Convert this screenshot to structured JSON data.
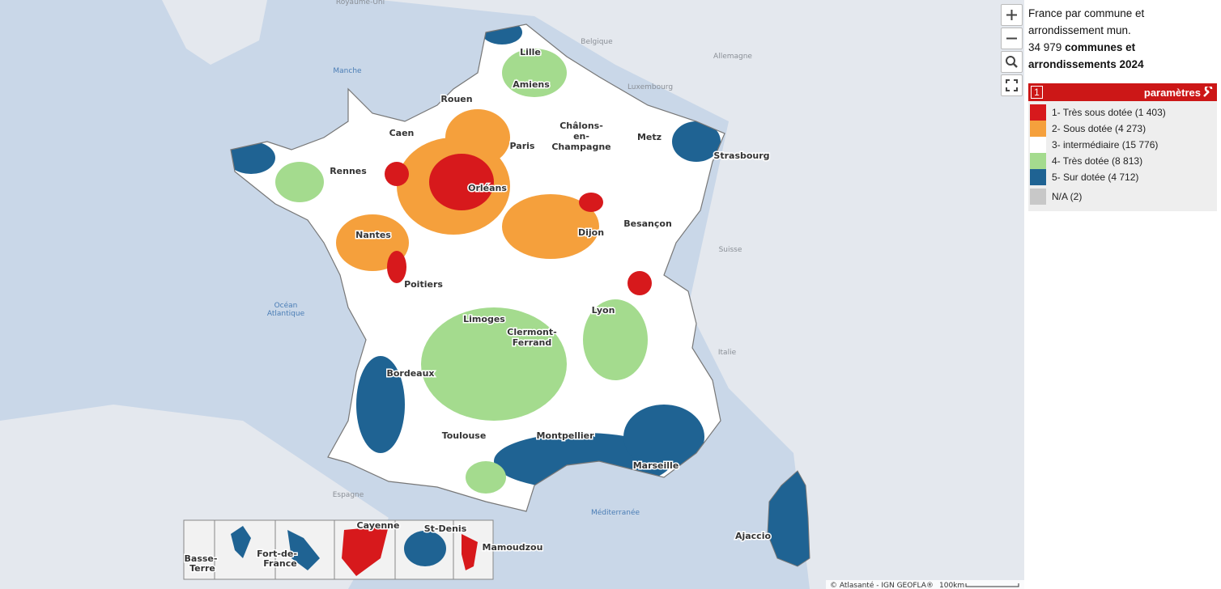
{
  "map": {
    "cities": [
      "Lille",
      "Amiens",
      "Rouen",
      "Caen",
      "Paris",
      [
        "Châlons-",
        "en-",
        "Champagne"
      ],
      "Metz",
      "Strasbourg",
      "Rennes",
      "Orléans",
      "Nantes",
      "Dijon",
      "Besançon",
      "Poitiers",
      "Limoges",
      "Lyon",
      [
        "Clermont-",
        "Ferrand"
      ],
      "Bordeaux",
      "Toulouse",
      "Montpellier",
      "Marseille",
      "Ajaccio",
      "Cayenne",
      "St-Denis",
      "Mamoudzou",
      [
        "Fort-de-",
        "France"
      ],
      [
        "Basse-",
        "Terre"
      ]
    ],
    "countries": [
      "Royaume-Uni",
      "Belgique",
      "Allemagne",
      "Luxembourg",
      "Suisse",
      "Italie",
      "Espagne"
    ],
    "seas": [
      "Manche",
      [
        "Océan",
        "Atlantique"
      ],
      "Méditerranée"
    ],
    "attribution": "© Atlasanté - IGN GEOFLA®",
    "scale": "100km"
  },
  "panel": {
    "title": "France par commune et arrondissement mun.",
    "count": "34 979",
    "count_label": "communes et arrondissements 2024",
    "header_number": "1",
    "header_label": "paramètres",
    "legend": [
      {
        "label": "1- Très sous dotée (1 403)",
        "color": "#d7191c"
      },
      {
        "label": "2- Sous dotée (4 273)",
        "color": "#f5a03c"
      },
      {
        "label": "3- intermédiaire (15 776)",
        "color": "#ffffff"
      },
      {
        "label": "4- Très dotée (8 813)",
        "color": "#a4db8e"
      },
      {
        "label": "5- Sur dotée (4 712)",
        "color": "#1f6393"
      },
      {
        "label": "N/A (2)",
        "color": "#c8c8c8"
      }
    ]
  }
}
